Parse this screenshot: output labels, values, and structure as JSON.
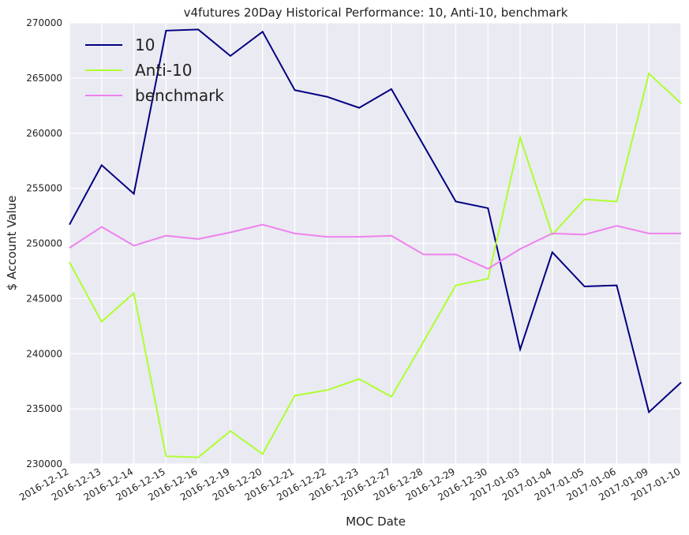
{
  "chart_data": {
    "type": "line",
    "title": "v4futures 20Day Historical Performance: 10, Anti-10, benchmark",
    "xlabel": "MOC Date",
    "ylabel": "$ Account Value",
    "ylim": [
      230000,
      270000
    ],
    "yticks": [
      230000,
      235000,
      240000,
      245000,
      250000,
      255000,
      260000,
      265000,
      270000
    ],
    "grid": true,
    "legend_position": "top-left",
    "categories": [
      "2016-12-12",
      "2016-12-13",
      "2016-12-14",
      "2016-12-15",
      "2016-12-16",
      "2016-12-19",
      "2016-12-20",
      "2016-12-21",
      "2016-12-22",
      "2016-12-23",
      "2016-12-27",
      "2016-12-28",
      "2016-12-29",
      "2016-12-30",
      "2017-01-03",
      "2017-01-04",
      "2017-01-05",
      "2017-01-06",
      "2017-01-09",
      "2017-01-10"
    ],
    "series": [
      {
        "name": "10",
        "color": "#000080",
        "values": [
          251700,
          257100,
          254500,
          269300,
          269400,
          267000,
          269200,
          263900,
          263300,
          262300,
          264000,
          258900,
          253800,
          253200,
          240400,
          249200,
          246100,
          246200,
          234700,
          237400
        ]
      },
      {
        "name": "Anti-10",
        "color": "#adff2f",
        "values": [
          248300,
          242900,
          245500,
          230700,
          230600,
          233000,
          230900,
          236200,
          236700,
          237700,
          236100,
          241100,
          246200,
          246800,
          259600,
          250800,
          254000,
          253800,
          265400,
          262700
        ]
      },
      {
        "name": "benchmark",
        "color": "#ee82ee",
        "values": [
          249600,
          251500,
          249800,
          250700,
          250400,
          251000,
          251700,
          250900,
          250600,
          250600,
          250700,
          249000,
          249000,
          247700,
          249500,
          250900,
          250800,
          251600,
          250900,
          250900
        ]
      }
    ]
  }
}
